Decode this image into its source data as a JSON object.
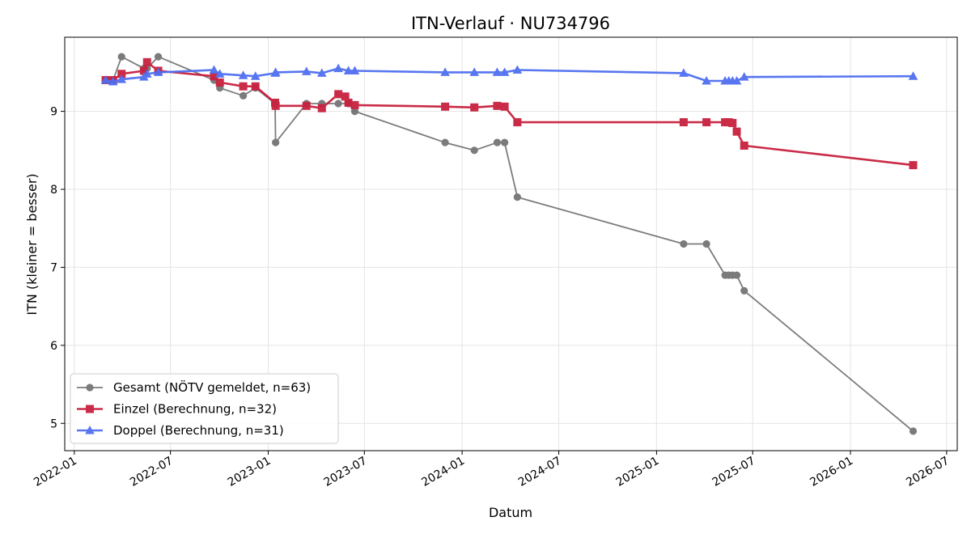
{
  "chart_data": {
    "type": "line",
    "title": "ITN-Verlauf · NU734796",
    "xlabel": "Datum",
    "ylabel": "ITN  (kleiner = besser)",
    "x_axis_type": "date",
    "xlim": [
      "2021-12-14",
      "2026-07-21"
    ],
    "ylim": [
      4.65,
      9.95
    ],
    "x_ticks": [
      "2022-01-01",
      "2022-07-01",
      "2023-01-01",
      "2023-07-01",
      "2024-01-01",
      "2024-07-01",
      "2025-01-01",
      "2025-07-01",
      "2026-01-01",
      "2026-07-01"
    ],
    "x_tick_labels": [
      "2022-01",
      "2022-07",
      "2023-01",
      "2023-07",
      "2024-01",
      "2024-07",
      "2025-01",
      "2025-07",
      "2026-01",
      "2026-07"
    ],
    "y_ticks": [
      5,
      6,
      7,
      8,
      9
    ],
    "grid": true,
    "legend_position": "lower-left",
    "series": [
      {
        "name": "Gesamt (NÖTV gemeldet, n=63)",
        "color": "#444444",
        "marker": "circle",
        "x": [
          "2022-03-01",
          "2022-03-15",
          "2022-03-31",
          "2022-05-12",
          "2022-05-18",
          "2022-06-08",
          "2022-09-21",
          "2022-10-02",
          "2022-11-15",
          "2022-12-08",
          "2023-01-14",
          "2023-01-15",
          "2023-03-14",
          "2023-04-12",
          "2023-05-13",
          "2023-06-01",
          "2023-06-13",
          "2023-11-30",
          "2024-01-24",
          "2024-03-07",
          "2024-03-21",
          "2024-04-14",
          "2025-02-21",
          "2025-04-05",
          "2025-05-10",
          "2025-05-17",
          "2025-05-24",
          "2025-06-01",
          "2025-06-15",
          "2026-04-29"
        ],
        "y": [
          9.4,
          9.4,
          9.7,
          9.55,
          9.55,
          9.7,
          9.4,
          9.3,
          9.2,
          9.3,
          9.1,
          8.6,
          9.1,
          9.1,
          9.1,
          9.1,
          9.0,
          8.6,
          8.5,
          8.6,
          8.6,
          7.9,
          7.3,
          7.3,
          6.9,
          6.9,
          6.9,
          6.9,
          6.7,
          4.9
        ]
      },
      {
        "name": "Einzel (Berechnung, n=32)",
        "color": "#c8203e",
        "marker": "square",
        "x": [
          "2022-03-01",
          "2022-03-15",
          "2022-03-31",
          "2022-05-12",
          "2022-05-18",
          "2022-06-08",
          "2022-09-21",
          "2022-10-02",
          "2022-11-15",
          "2022-12-08",
          "2023-01-14",
          "2023-01-15",
          "2023-03-14",
          "2023-04-12",
          "2023-05-13",
          "2023-05-26",
          "2023-06-01",
          "2023-06-13",
          "2023-11-30",
          "2024-01-24",
          "2024-03-07",
          "2024-03-21",
          "2024-04-14",
          "2025-02-21",
          "2025-04-05",
          "2025-05-10",
          "2025-05-17",
          "2025-05-24",
          "2025-06-01",
          "2025-06-15",
          "2026-04-29"
        ],
        "y": [
          9.4,
          9.4,
          9.48,
          9.52,
          9.63,
          9.52,
          9.45,
          9.37,
          9.32,
          9.32,
          9.11,
          9.07,
          9.07,
          9.04,
          9.22,
          9.19,
          9.11,
          9.08,
          9.06,
          9.05,
          9.07,
          9.06,
          8.86,
          8.86,
          8.86,
          8.86,
          8.86,
          8.85,
          8.74,
          8.56,
          8.31
        ]
      },
      {
        "name": "Doppel (Berechnung, n=31)",
        "color": "#4f6ff0",
        "marker": "triangle",
        "x": [
          "2022-03-01",
          "2022-03-15",
          "2022-03-31",
          "2022-05-12",
          "2022-05-18",
          "2022-06-08",
          "2022-09-21",
          "2022-10-02",
          "2022-11-15",
          "2022-12-08",
          "2023-01-14",
          "2023-01-15",
          "2023-03-14",
          "2023-04-12",
          "2023-05-13",
          "2023-06-01",
          "2023-06-13",
          "2023-11-30",
          "2024-01-24",
          "2024-03-07",
          "2024-03-21",
          "2024-04-14",
          "2025-02-21",
          "2025-04-05",
          "2025-05-10",
          "2025-05-17",
          "2025-05-24",
          "2025-06-01",
          "2025-06-15",
          "2026-04-29"
        ],
        "y": [
          9.4,
          9.38,
          9.41,
          9.44,
          9.48,
          9.5,
          9.53,
          9.48,
          9.46,
          9.45,
          9.49,
          9.5,
          9.51,
          9.49,
          9.55,
          9.52,
          9.52,
          9.5,
          9.5,
          9.5,
          9.5,
          9.53,
          9.49,
          9.39,
          9.39,
          9.39,
          9.39,
          9.39,
          9.44,
          9.45
        ]
      }
    ]
  }
}
